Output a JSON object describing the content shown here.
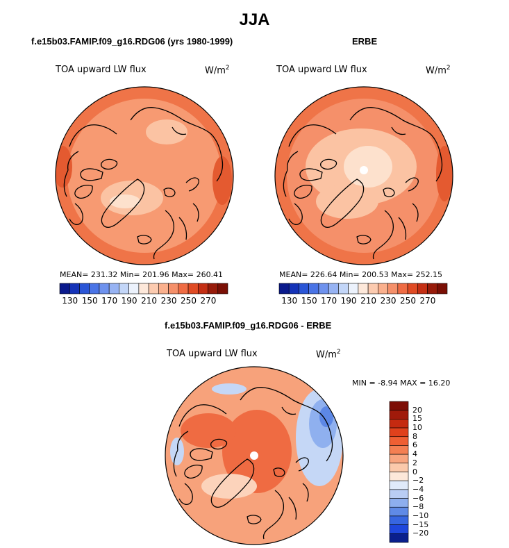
{
  "main_title": "JJA",
  "left_panel": {
    "title": "f.e15b03.FAMIP.f09_g16.RDG06 (yrs 1980-1999)",
    "variable": "TOA upward LW flux",
    "units": "W/m",
    "units_exp": "2",
    "stats": "MEAN= 231.32  Min= 201.96  Max= 260.41"
  },
  "right_panel": {
    "title": "ERBE",
    "variable": "TOA upward LW flux",
    "units": "W/m",
    "units_exp": "2",
    "stats": "MEAN= 226.64  Min= 200.53  Max= 252.15"
  },
  "diff_panel": {
    "title": "f.e15b03.FAMIP.f09_g16.RDG06 - ERBE",
    "variable": "TOA upward LW flux",
    "units": "W/m",
    "units_exp": "2",
    "minmax": "MIN =   -8.94  MAX =   16.20"
  },
  "colorbar_abs": {
    "labels": [
      "130",
      "150",
      "170",
      "190",
      "210",
      "230",
      "250",
      "270"
    ],
    "colors": [
      "#0a1a8c",
      "#1533b8",
      "#2a55d6",
      "#4a74e6",
      "#6e92ee",
      "#97b3f3",
      "#c3d6f8",
      "#ecf2fc",
      "#fde8da",
      "#fccbb0",
      "#fab08d",
      "#f5906a",
      "#ef6c44",
      "#e04b24",
      "#c42f14",
      "#971b0a",
      "#7a0f05"
    ]
  },
  "colorbar_diff": {
    "labels": [
      "20",
      "15",
      "10",
      "8",
      "6",
      "4",
      "2",
      "0",
      "-2",
      "-4",
      "-6",
      "-8",
      "-10",
      "-15",
      "-20"
    ],
    "colors": [
      "#7d0d05",
      "#a01a0a",
      "#c52a10",
      "#e0411c",
      "#ef5f33",
      "#f47f52",
      "#f8a57f",
      "#fbc9ab",
      "#fde8da",
      "#e0eafa",
      "#b9cdf4",
      "#8daeee",
      "#5f8ae6",
      "#3766e0",
      "#1f47dc",
      "#0a1f8c"
    ]
  },
  "map_colors": {
    "base_left": "#f79a72",
    "base_right": "#f5906a",
    "warm_belt": "#ef7448",
    "hot": "#e45a30",
    "light": "#fbc3a3",
    "pale": "#fde1cd",
    "blue1": "#c5d7f6",
    "blue2": "#8fb0ef",
    "blue3": "#5d88e6",
    "diff_base": "#f7a27b",
    "diff_warm": "#ef6b42",
    "diff_light": "#fcd3bb"
  }
}
